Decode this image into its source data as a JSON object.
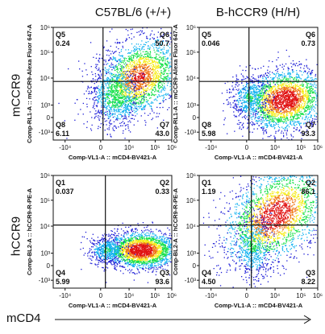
{
  "figure": {
    "column_titles": [
      "C57BL/6 (+/+)",
      "B-hCCR9 (H/H)"
    ],
    "row_labels": [
      "mCCR9",
      "hCCR9"
    ],
    "bottom_axis_label": "mCD4"
  },
  "chart_data": [
    {
      "type": "scatter",
      "subtype": "flow-cytometry-density-plot",
      "column": "C57BL/6 (+/+)",
      "row": "mCCR9",
      "xlabel": "Comp-VL1-A :: mCD4-BV421-A",
      "ylabel": "Comp-RL1-A :: mCCR9-Alexa Fluor 647-A",
      "x_ticks": [
        "-10⁴",
        "0",
        "10⁴",
        "10⁵",
        "10⁶"
      ],
      "y_ticks": [
        "10⁶",
        "10⁵",
        "10⁴",
        "10³",
        "0",
        "-10³"
      ],
      "quadrants": [
        {
          "name": "Q5",
          "percent": "0.24",
          "position": "top-left"
        },
        {
          "name": "Q6",
          "percent": "50.7",
          "position": "top-right"
        },
        {
          "name": "Q8",
          "percent": "6.11",
          "position": "bottom-left"
        },
        {
          "name": "Q7",
          "percent": "43.0",
          "position": "bottom-right"
        }
      ]
    },
    {
      "type": "scatter",
      "subtype": "flow-cytometry-density-plot",
      "column": "B-hCCR9 (H/H)",
      "row": "mCCR9",
      "xlabel": "Comp-VL1-A :: mCD4-BV421-A",
      "ylabel": "Comp-RL1-A :: mCCR9-Alexa Fluor 647-A",
      "x_ticks": [
        "-10⁴",
        "0",
        "10⁴",
        "10⁵",
        "10⁶"
      ],
      "y_ticks": [
        "10⁶",
        "10⁵",
        "10⁴",
        "10³",
        "0",
        "-10³"
      ],
      "quadrants": [
        {
          "name": "Q5",
          "percent": "0.046",
          "position": "top-left"
        },
        {
          "name": "Q6",
          "percent": "0.73",
          "position": "top-right"
        },
        {
          "name": "Q8",
          "percent": "5.98",
          "position": "bottom-left"
        },
        {
          "name": "Q7",
          "percent": "93.3",
          "position": "bottom-right"
        }
      ]
    },
    {
      "type": "scatter",
      "subtype": "flow-cytometry-density-plot",
      "column": "C57BL/6 (+/+)",
      "row": "hCCR9",
      "xlabel": "Comp-VL1-A :: mCD4-BV421-A",
      "ylabel": "Comp-BL2-A :: hCCR9-R-PE-A",
      "x_ticks": [
        "-10⁴",
        "0",
        "10⁴",
        "10⁵",
        "10⁶"
      ],
      "y_ticks": [
        "10⁶",
        "10⁵",
        "10⁴",
        "10³",
        "0",
        "-10³"
      ],
      "quadrants": [
        {
          "name": "Q1",
          "percent": "0.037",
          "position": "top-left"
        },
        {
          "name": "Q2",
          "percent": "0.33",
          "position": "top-right"
        },
        {
          "name": "Q4",
          "percent": "5.99",
          "position": "bottom-left"
        },
        {
          "name": "Q3",
          "percent": "93.6",
          "position": "bottom-right"
        }
      ]
    },
    {
      "type": "scatter",
      "subtype": "flow-cytometry-density-plot",
      "column": "B-hCCR9 (H/H)",
      "row": "hCCR9",
      "xlabel": "Comp-VL1-A :: mCD4-BV421-A",
      "ylabel": "Comp-BL2-A :: hCCR9-R-PE-A",
      "x_ticks": [
        "-10⁴",
        "0",
        "10⁴",
        "10⁵",
        "10⁶"
      ],
      "y_ticks": [
        "10⁶",
        "10⁵",
        "10⁴",
        "10³",
        "0",
        "-10³"
      ],
      "quadrants": [
        {
          "name": "Q1",
          "percent": "1.19",
          "position": "top-left"
        },
        {
          "name": "Q2",
          "percent": "86.1",
          "position": "top-right"
        },
        {
          "name": "Q4",
          "percent": "4.50",
          "position": "bottom-left"
        },
        {
          "name": "Q3",
          "percent": "8.22",
          "position": "bottom-right"
        }
      ]
    }
  ],
  "density_colors": [
    "#1b1bd6",
    "#16b4f0",
    "#17e04a",
    "#f5ec16",
    "#f07818",
    "#e01212"
  ]
}
